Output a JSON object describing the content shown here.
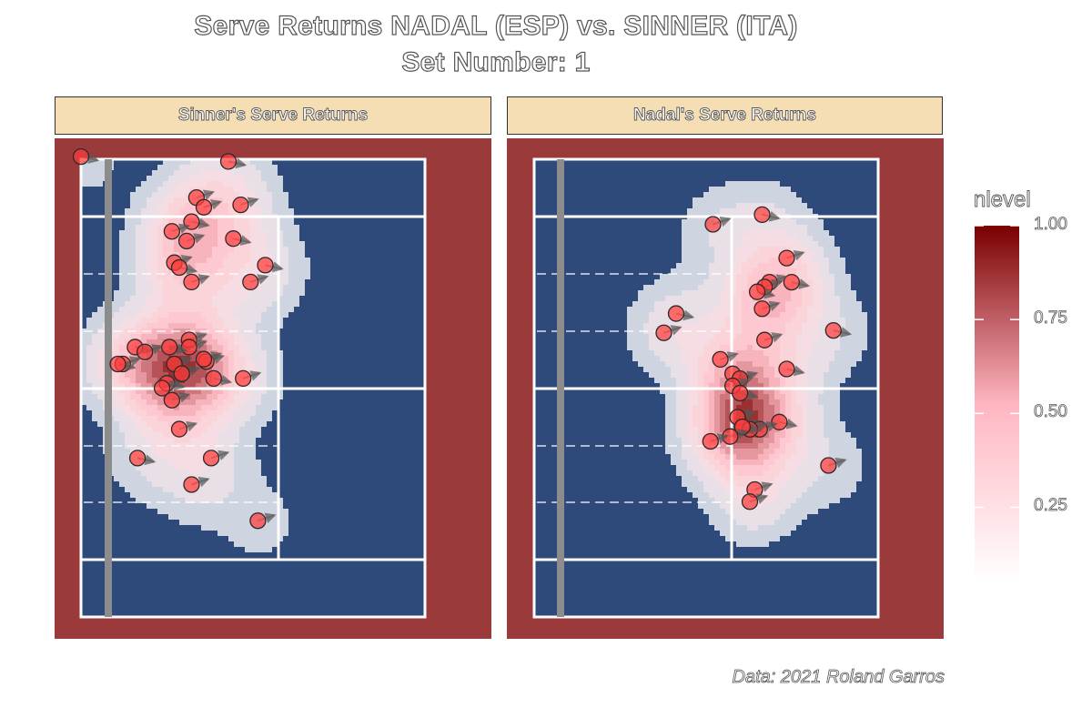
{
  "title_line1": "Serve Returns NADAL (ESP) vs. SINNER (ITA)",
  "title_line2": "Set Number: 1",
  "caption": "Data: 2021 Roland Garros",
  "legend": {
    "title": "nlevel",
    "ticks": [
      "1.00",
      "0.75",
      "0.50",
      "0.25"
    ],
    "tick_values": [
      1.0,
      0.75,
      0.5,
      0.25
    ],
    "color_low": "#ffffff",
    "color_mid": "#ffb6c1",
    "color_high": "#7a0000"
  },
  "colors": {
    "court": "#2e4a7a",
    "surround": "#9b3a3a",
    "lines": "#ffffff",
    "net": "#8c8c8c",
    "strip": "#f5deb3",
    "point": "#ff3b3b"
  },
  "chart_data": [
    {
      "type": "scatter",
      "panel": "Sinner's Serve Returns",
      "density": "filled contours of normalized level (nlevel)",
      "points": [
        [
          -1.0,
          10.4
        ],
        [
          -2.3,
          8.9
        ],
        [
          -2.0,
          8.5
        ],
        [
          -2.5,
          7.9
        ],
        [
          -0.5,
          8.6
        ],
        [
          -3.2,
          6.2
        ],
        [
          -3.0,
          6.0
        ],
        [
          -2.5,
          5.4
        ],
        [
          -2.7,
          7.1
        ],
        [
          -0.8,
          7.2
        ],
        [
          -2.6,
          3.0
        ],
        [
          -2.6,
          2.7
        ],
        [
          -3.4,
          2.7
        ],
        [
          -3.2,
          2.0
        ],
        [
          -2.9,
          1.6
        ],
        [
          -3.5,
          1.2
        ],
        [
          -3.7,
          1.0
        ],
        [
          -3.3,
          0.5
        ],
        [
          -4.8,
          2.7
        ],
        [
          -4.4,
          2.5
        ],
        [
          -5.3,
          2.0
        ],
        [
          -5.5,
          2.0
        ],
        [
          -1.9,
          2.1
        ],
        [
          -2.0,
          2.2
        ],
        [
          -1.6,
          1.4
        ],
        [
          -0.4,
          1.4
        ],
        [
          -3.0,
          -0.7
        ],
        [
          -4.7,
          -1.9
        ],
        [
          -1.7,
          -1.9
        ],
        [
          -2.5,
          -3.0
        ],
        [
          -7.0,
          10.6
        ],
        [
          -3.3,
          7.5
        ],
        [
          -0.1,
          5.4
        ],
        [
          0.5,
          6.1
        ],
        [
          0.2,
          -4.5
        ]
      ]
    },
    {
      "type": "scatter",
      "panel": "Nadal's Serve Returns",
      "density": "filled contours of normalized level (nlevel)",
      "points": [
        [
          -3.5,
          11.4
        ],
        [
          -5.5,
          11.0
        ],
        [
          -2.5,
          9.6
        ],
        [
          -2.3,
          8.6
        ],
        [
          -3.2,
          8.6
        ],
        [
          -3.4,
          8.4
        ],
        [
          -3.7,
          8.2
        ],
        [
          -3.5,
          7.5
        ],
        [
          -5.2,
          5.4
        ],
        [
          -4.7,
          4.8
        ],
        [
          -4.4,
          4.6
        ],
        [
          -4.7,
          4.3
        ],
        [
          -4.4,
          4.0
        ],
        [
          -4.5,
          3.0
        ],
        [
          -4.3,
          2.6
        ],
        [
          -2.8,
          2.8
        ],
        [
          -3.6,
          2.5
        ],
        [
          -4.0,
          2.5
        ],
        [
          -4.3,
          2.6
        ],
        [
          -4.8,
          2.2
        ],
        [
          -5.6,
          2.0
        ],
        [
          -7.0,
          7.3
        ],
        [
          -7.5,
          6.5
        ],
        [
          -3.4,
          6.2
        ],
        [
          -2.5,
          5.0
        ],
        [
          -3.8,
          0.0
        ],
        [
          -4.0,
          -0.5
        ],
        [
          -0.6,
          6.6
        ],
        [
          -0.8,
          1.0
        ]
      ]
    }
  ]
}
